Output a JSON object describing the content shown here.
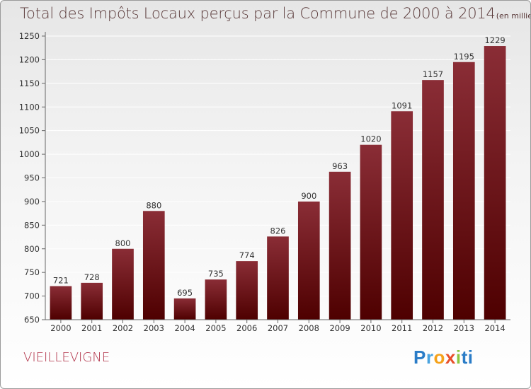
{
  "title": "Total des Impôts Locaux perçus par la Commune de 2000 à 2014",
  "title_unit": "(en milliers d'€)",
  "commune": "VIEILLEVIGNE",
  "logo_text": "Proxiti",
  "logo_letters": [
    "P",
    "r",
    "o",
    "x",
    "i",
    "ti"
  ],
  "colors": {
    "bar_top": "#8a2d36",
    "bar_bottom": "#4e0000",
    "grid": "#ffffff",
    "axis_text": "#333333",
    "title": "#5a3a3a",
    "commune": "#b2344a"
  },
  "chart_data": {
    "type": "bar",
    "title": "Total des Impôts Locaux perçus par la Commune de 2000 à 2014",
    "xlabel": "",
    "ylabel": "",
    "ylim": [
      650,
      1250
    ],
    "yticks": [
      650,
      700,
      750,
      800,
      850,
      900,
      950,
      1000,
      1050,
      1100,
      1150,
      1200,
      1250
    ],
    "grid": true,
    "categories": [
      "2000",
      "2001",
      "2002",
      "2003",
      "2004",
      "2005",
      "2006",
      "2007",
      "2008",
      "2009",
      "2010",
      "2011",
      "2012",
      "2013",
      "2014"
    ],
    "values": [
      721,
      728,
      800,
      880,
      695,
      735,
      774,
      826,
      900,
      963,
      1020,
      1091,
      1157,
      1195,
      1229
    ],
    "data_labels": [
      "721",
      "728",
      "800",
      "880",
      "695",
      "735",
      "774",
      "826",
      "900",
      "963",
      "1020",
      "1091",
      "1157",
      "1195",
      "1229"
    ]
  }
}
